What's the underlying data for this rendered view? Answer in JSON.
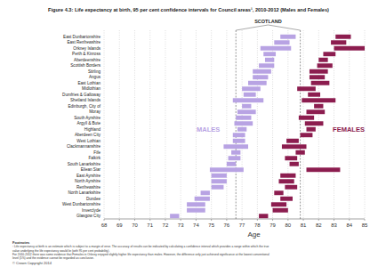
{
  "chart_data": {
    "type": "range",
    "orientation": "horizontal",
    "title": "Figure 4.3: Life expectancy at birth, 95 per cent confidence intervals for Council areas¹, 2010-2012 (Males and Females)",
    "x_label": "Age",
    "categories": [
      "East Dunbartonshire",
      "East Renfrewshire",
      "Orkney Islands",
      "Perth & Kinross",
      "Aberdeenshire",
      "Scottish Borders",
      "Stirling",
      "Angus",
      "East Lothian",
      "Midlothian",
      "Dumfries & Galloway",
      "Shetland Islands",
      "Edinburgh, City of",
      "Moray",
      "South Ayrshire",
      "Argyll & Bute",
      "Highland",
      "Aberdeen City",
      "West Lothian",
      "Clackmannanshire",
      "Fife",
      "Falkirk",
      "South Lanarkshire",
      "Eilean Siar",
      "East Ayrshire",
      "North Ayrshire",
      "Renfrewshire",
      "North Lanarkshire",
      "Dundee",
      "West Dunbartonshire",
      "Inverclyde",
      "Glasgow City"
    ],
    "series": [
      {
        "name": "MALES",
        "color": "#b8a3e3",
        "low": [
          79.5,
          79.1,
          78.2,
          78.4,
          78.5,
          78.1,
          77.7,
          77.7,
          77.4,
          77.0,
          77.1,
          76.4,
          77.0,
          76.7,
          76.6,
          76.5,
          76.7,
          76.4,
          76.4,
          75.8,
          76.3,
          76.1,
          76.0,
          74.9,
          75.0,
          75.0,
          75.0,
          74.3,
          73.9,
          73.4,
          73.4,
          72.3
        ],
        "high": [
          80.5,
          80.1,
          80.2,
          79.2,
          79.1,
          79.1,
          78.9,
          78.7,
          78.6,
          78.2,
          77.9,
          78.4,
          77.6,
          77.9,
          77.6,
          77.7,
          77.3,
          77.2,
          77.2,
          77.4,
          76.9,
          76.9,
          76.6,
          77.1,
          76.0,
          76.0,
          75.8,
          74.9,
          74.9,
          74.6,
          74.6,
          72.9
        ]
      },
      {
        "name": "FEMALES",
        "color": "#8c1d4f",
        "low": [
          83.1,
          82.8,
          83.0,
          82.3,
          82.0,
          81.9,
          81.4,
          81.4,
          81.5,
          80.6,
          81.3,
          80.9,
          81.7,
          81.2,
          80.7,
          81.1,
          81.2,
          80.8,
          79.9,
          79.6,
          80.5,
          79.8,
          80.1,
          81.2,
          79.5,
          79.4,
          79.8,
          79.1,
          79.5,
          78.9,
          79.0,
          78.1
        ],
        "high": [
          84.1,
          83.8,
          85.0,
          83.1,
          82.6,
          82.9,
          82.6,
          82.4,
          82.7,
          81.8,
          82.1,
          83.1,
          82.3,
          82.4,
          81.7,
          82.3,
          81.8,
          81.6,
          80.7,
          81.2,
          81.1,
          80.6,
          80.7,
          83.4,
          80.5,
          80.4,
          80.6,
          79.7,
          80.3,
          79.9,
          80.0,
          78.7
        ]
      }
    ],
    "reference": {
      "label": "SCOTLAND",
      "values": [
        76.6,
        80.8
      ]
    },
    "xlim": [
      68,
      85
    ],
    "xticks": [
      68,
      69,
      70,
      71,
      72,
      73,
      74,
      75,
      76,
      77,
      78,
      79,
      80,
      81,
      82,
      83,
      84,
      85
    ],
    "grid": true,
    "footnotes": [
      "Footnotes",
      "¹ Life expectancy at birth is an estimate which is subject to a margin of error. The accuracy of results can be indicated by calculating a confidence interval which provides a range within which the true",
      "value underlying the life expectancy would lie (with 95 per cent probability).",
      "For 2010-2012 there was some evidence that Females in Orkney enjoyed slightly higher life expectancy than males. However, the difference only just achieved significance at the lowest conventional",
      "level (5%) and the evidence cannot be regarded as conclusive."
    ],
    "copyright": "© Crown Copyright 2014"
  }
}
